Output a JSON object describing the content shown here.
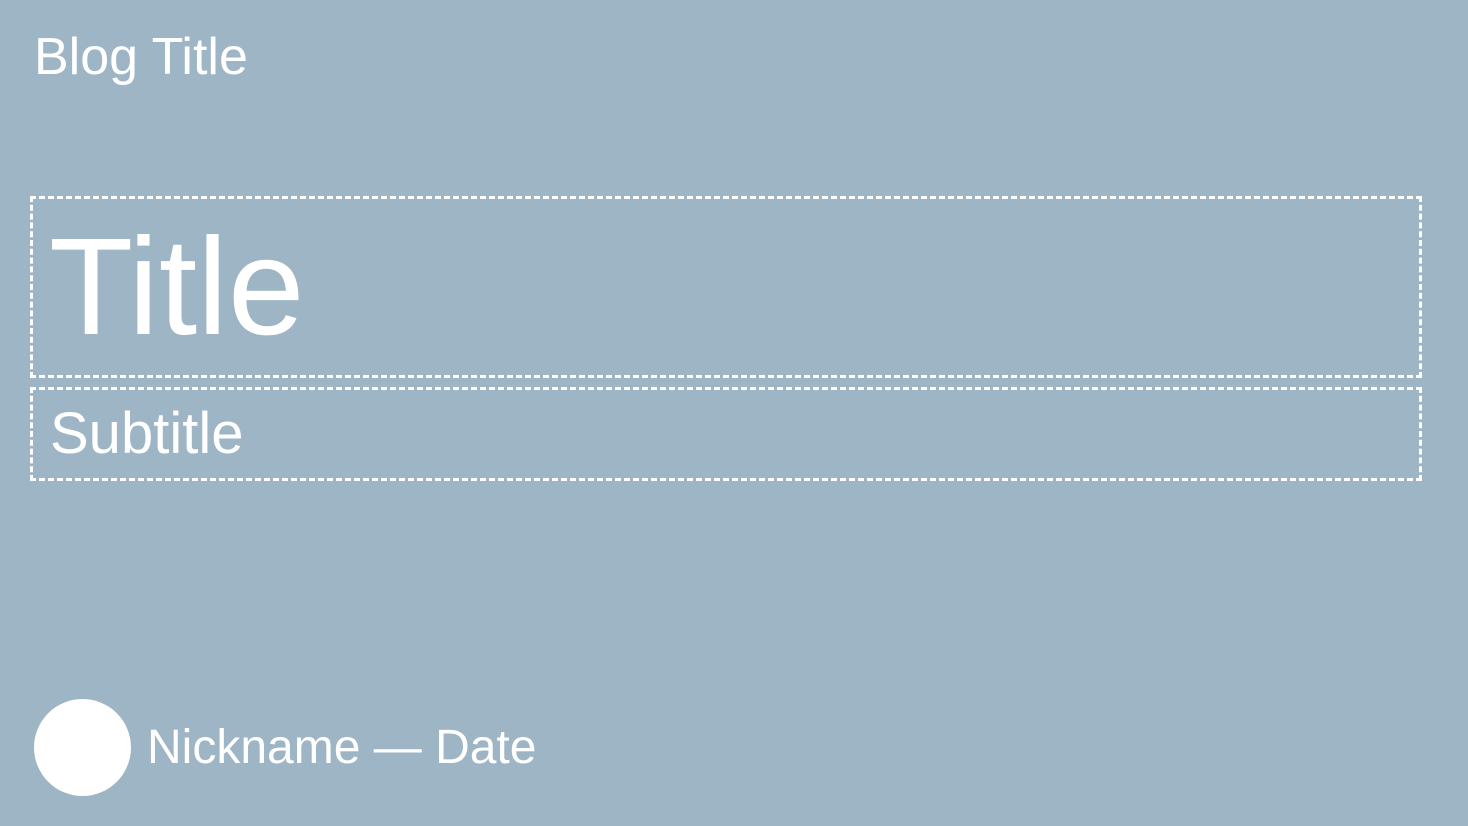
{
  "header": {
    "blog_title": "Blog Title"
  },
  "post": {
    "title": "Title",
    "subtitle": "Subtitle"
  },
  "author": {
    "byline": "Nickname — Date"
  },
  "colors": {
    "background": "#9eb5c5",
    "text": "#ffffff"
  }
}
